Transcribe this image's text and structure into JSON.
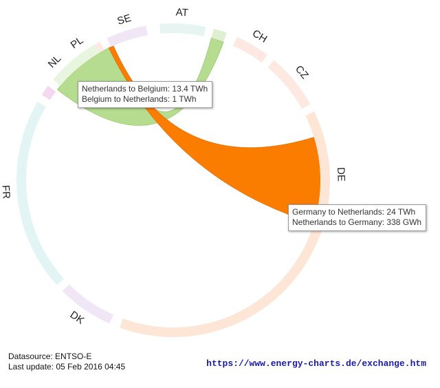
{
  "chart_data": {
    "type": "chord",
    "nodes": [
      {
        "id": "PL",
        "color": "#fde8e2"
      },
      {
        "id": "SE",
        "color": "#f1e6f5"
      },
      {
        "id": "AT",
        "color": "#e6f5f1"
      },
      {
        "id": "",
        "color": "#dff0d2"
      },
      {
        "id": "CH",
        "color": "#fde8e2"
      },
      {
        "id": "CZ",
        "color": "#fde8e2"
      },
      {
        "id": "DE",
        "color": "#fde6d5"
      },
      {
        "id": "DK",
        "color": "#f1e6f5"
      },
      {
        "id": "FR",
        "color": "#e3f4f5"
      },
      {
        "id": "",
        "color": "#f4d8ef"
      },
      {
        "id": "NL",
        "color": "#e8f5df"
      }
    ],
    "flows": [
      {
        "from": "Netherlands",
        "to": "Belgium",
        "value": 13.4,
        "unit": "TWh",
        "color": "#b5dc8f"
      },
      {
        "from": "Belgium",
        "to": "Netherlands",
        "value": 1,
        "unit": "TWh",
        "color": "#b5dc8f"
      },
      {
        "from": "Germany",
        "to": "Netherlands",
        "value": 24,
        "unit": "TWh",
        "color": "#fb7d00"
      },
      {
        "from": "Netherlands",
        "to": "Germany",
        "value": 338,
        "unit": "GWh",
        "color": "#fb7d00"
      }
    ]
  },
  "tooltips": {
    "nl_be": {
      "line1": "Netherlands to Belgium: 13.4 TWh",
      "line2": "Belgium to Netherlands: 1 TWh"
    },
    "de_nl": {
      "line1": "Germany to Netherlands: 24 TWh",
      "line2": "Netherlands to Germany: 338 GWh"
    }
  },
  "footer": {
    "datasource": "Datasource: ENTSO-E",
    "last_update": "Last update: 05 Feb 2016 04:45",
    "url": "https://www.energy-charts.de/exchange.htm"
  }
}
